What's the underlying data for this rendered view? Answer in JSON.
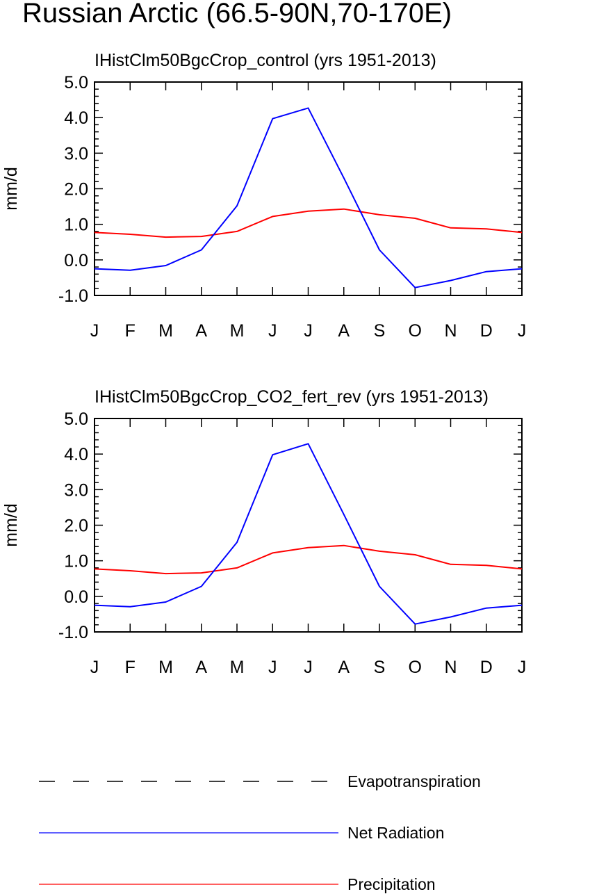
{
  "figure": {
    "title": "Russian Arctic (66.5-90N,70-170E)"
  },
  "chart_data": [
    {
      "type": "line",
      "title": "IHistClm50BgcCrop_control (yrs 1951-2013)",
      "ylabel": "mm/d",
      "xlabel": "",
      "categories": [
        "J",
        "F",
        "M",
        "A",
        "M",
        "J",
        "J",
        "A",
        "S",
        "O",
        "N",
        "D",
        "J"
      ],
      "ylim": [
        -1.0,
        5.0
      ],
      "yticks": [
        "5.0",
        "4.0",
        "3.0",
        "2.0",
        "1.0",
        "0.0",
        "-1.0"
      ],
      "series": [
        {
          "name": "Net Radiation",
          "color": "#0000ff",
          "values": [
            -0.25,
            -0.29,
            -0.16,
            0.28,
            1.52,
            3.97,
            4.27,
            2.3,
            0.28,
            -0.78,
            -0.58,
            -0.33,
            -0.25
          ]
        },
        {
          "name": "Precipitation",
          "color": "#ff0000",
          "values": [
            0.77,
            0.72,
            0.64,
            0.66,
            0.8,
            1.22,
            1.37,
            1.43,
            1.27,
            1.17,
            0.9,
            0.87,
            0.77
          ]
        }
      ]
    },
    {
      "type": "line",
      "title": "IHistClm50BgcCrop_CO2_fert_rev (yrs 1951-2013)",
      "ylabel": "mm/d",
      "xlabel": "",
      "categories": [
        "J",
        "F",
        "M",
        "A",
        "M",
        "J",
        "J",
        "A",
        "S",
        "O",
        "N",
        "D",
        "J"
      ],
      "ylim": [
        -1.0,
        5.0
      ],
      "yticks": [
        "5.0",
        "4.0",
        "3.0",
        "2.0",
        "1.0",
        "0.0",
        "-1.0"
      ],
      "series": [
        {
          "name": "Net Radiation",
          "color": "#0000ff",
          "values": [
            -0.25,
            -0.29,
            -0.16,
            0.28,
            1.52,
            3.98,
            4.29,
            2.3,
            0.28,
            -0.78,
            -0.58,
            -0.33,
            -0.25
          ]
        },
        {
          "name": "Precipitation",
          "color": "#ff0000",
          "values": [
            0.77,
            0.72,
            0.64,
            0.66,
            0.8,
            1.22,
            1.37,
            1.43,
            1.27,
            1.17,
            0.9,
            0.87,
            0.77
          ]
        }
      ]
    }
  ],
  "legend": [
    {
      "label": "Evapotranspiration",
      "color": "#000000",
      "dash": "dashed"
    },
    {
      "label": "Net Radiation",
      "color": "#0000ff",
      "dash": "solid"
    },
    {
      "label": "Precipitation",
      "color": "#ff0000",
      "dash": "solid"
    }
  ]
}
